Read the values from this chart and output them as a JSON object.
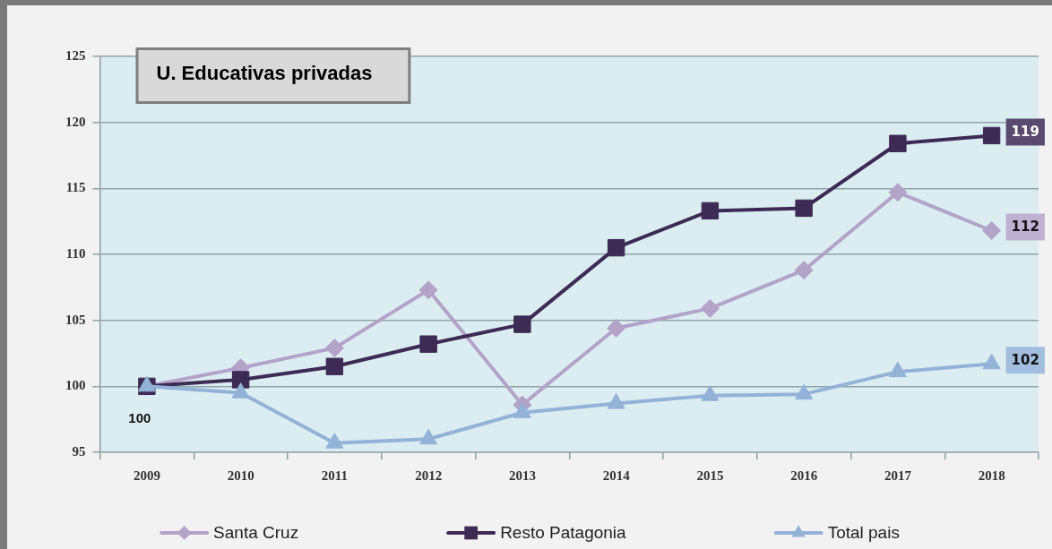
{
  "chart_data": {
    "type": "line",
    "title": "U. Educativas privadas",
    "categories": [
      "2009",
      "2010",
      "2011",
      "2012",
      "2013",
      "2014",
      "2015",
      "2016",
      "2017",
      "2018"
    ],
    "series": [
      {
        "name": "Santa Cruz",
        "color": "#b3a3c9",
        "marker": "diamond",
        "values": [
          100,
          101.4,
          102.9,
          107.3,
          98.6,
          104.4,
          105.9,
          108.8,
          114.7,
          111.8
        ],
        "value_labels": [
          null,
          null,
          null,
          null,
          null,
          null,
          null,
          null,
          null,
          "112"
        ]
      },
      {
        "name": "Resto Patagonia",
        "color": "#3d2a55",
        "marker": "square",
        "values": [
          100,
          100.5,
          101.5,
          103.2,
          104.7,
          110.5,
          113.3,
          113.5,
          118.4,
          119.0
        ],
        "value_labels": [
          null,
          null,
          null,
          null,
          null,
          null,
          null,
          null,
          null,
          "119"
        ]
      },
      {
        "name": "Total pais",
        "color": "#92b2d8",
        "marker": "triangle",
        "values": [
          100,
          99.5,
          95.7,
          96.0,
          98.0,
          98.7,
          99.3,
          99.4,
          101.1,
          101.7
        ],
        "value_labels": [
          null,
          null,
          null,
          null,
          null,
          null,
          null,
          null,
          null,
          "102"
        ]
      }
    ],
    "ylim": [
      95,
      125
    ],
    "yticks": [
      95,
      100,
      105,
      110,
      115,
      120,
      125
    ],
    "grid": "y",
    "legend": "bottom",
    "line_style": "solid",
    "annotations": [
      {
        "text": "100",
        "x": "2009",
        "y": 100
      }
    ]
  }
}
